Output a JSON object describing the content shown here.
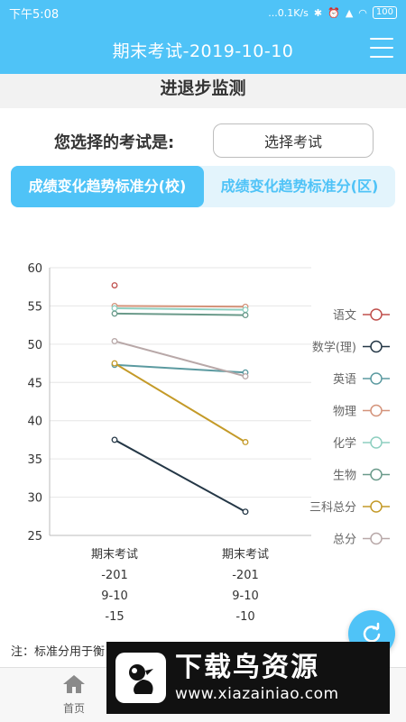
{
  "status_bar": {
    "time": "下午5:08",
    "network_speed": "...0.1K/s",
    "battery": "100"
  },
  "header": {
    "title": "期末考试-2019-10-10"
  },
  "section_title": "进退步监测",
  "exam_picker": {
    "label": "您选择的考试是:",
    "button_label": "选择考试"
  },
  "tabs": [
    {
      "label": "成绩变化趋势标准分(校)",
      "active": true
    },
    {
      "label": "成绩变化趋势标准分(区)",
      "active": false
    }
  ],
  "chart_data": {
    "type": "line",
    "x_labels": [
      [
        "期末考试",
        "-201",
        "9-10",
        "-15"
      ],
      [
        "期末考试",
        "-201",
        "9-10",
        "-10"
      ]
    ],
    "ylim": [
      25,
      60
    ],
    "yticks": [
      25,
      30,
      35,
      40,
      45,
      50,
      55,
      60
    ],
    "grid": true,
    "legend_position": "right",
    "series": [
      {
        "name": "语文",
        "color": "#c0504d",
        "values": [
          57.7,
          null
        ]
      },
      {
        "name": "数学(理)",
        "color": "#243746",
        "values": [
          37.5,
          28.1
        ]
      },
      {
        "name": "英语",
        "color": "#5b9aa0",
        "values": [
          47.3,
          46.3
        ]
      },
      {
        "name": "物理",
        "color": "#d4937a",
        "values": [
          55.0,
          54.9
        ]
      },
      {
        "name": "化学",
        "color": "#8ecfc0",
        "values": [
          54.7,
          54.5
        ]
      },
      {
        "name": "生物",
        "color": "#6a9a8a",
        "values": [
          54.0,
          53.8
        ]
      },
      {
        "name": "三科总分",
        "color": "#c49a28",
        "values": [
          47.5,
          37.2
        ]
      },
      {
        "name": "总分",
        "color": "#b8a8a8",
        "values": [
          50.4,
          45.8
        ]
      }
    ]
  },
  "note": "注：标准分用于衡",
  "bottom_nav": {
    "home_label": "首页"
  },
  "watermark": {
    "title": "下载鸟资源",
    "url": "www.xiazainiao.com"
  }
}
